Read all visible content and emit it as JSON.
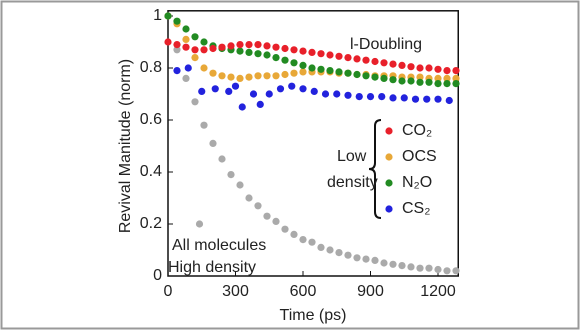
{
  "chart_data": {
    "type": "scatter",
    "xlabel": "Time (ps)",
    "ylabel": "Revival Manitude (norm)",
    "xlim": [
      0,
      1290
    ],
    "ylim": [
      0,
      1.02
    ],
    "xticks": [
      0,
      300,
      600,
      900,
      1200
    ],
    "yticks": [
      0,
      0.2,
      0.4,
      0.6,
      0.8,
      1
    ],
    "annotations": [
      "l-Doubling",
      "Low",
      "density",
      "All molecules",
      "High density"
    ],
    "series": [
      {
        "color": "#aaaaaa",
        "x": [
          0,
          40,
          80,
          120,
          160,
          200,
          240,
          280,
          320,
          360,
          400,
          440,
          480,
          520,
          560,
          600,
          640,
          680,
          720,
          760,
          800,
          840,
          880,
          920,
          960,
          1000,
          1040,
          1080,
          1120,
          1160,
          1200,
          1240,
          1280,
          140
        ],
        "values": [
          1.0,
          0.87,
          0.76,
          0.67,
          0.58,
          0.51,
          0.45,
          0.39,
          0.35,
          0.3,
          0.27,
          0.23,
          0.21,
          0.18,
          0.16,
          0.14,
          0.13,
          0.11,
          0.1,
          0.09,
          0.08,
          0.07,
          0.065,
          0.06,
          0.05,
          0.045,
          0.04,
          0.035,
          0.03,
          0.03,
          0.025,
          0.02,
          0.02,
          0.2
        ]
      },
      {
        "name": "CS₂",
        "color": "#2222dd",
        "x": [
          40,
          90,
          150,
          210,
          270,
          300,
          330,
          380,
          410,
          450,
          500,
          550,
          600,
          650,
          700,
          750,
          800,
          850,
          900,
          950,
          1000,
          1050,
          1100,
          1150,
          1200,
          1250
        ],
        "values": [
          0.79,
          0.8,
          0.71,
          0.72,
          0.71,
          0.73,
          0.65,
          0.7,
          0.66,
          0.7,
          0.72,
          0.73,
          0.72,
          0.71,
          0.7,
          0.7,
          0.695,
          0.69,
          0.69,
          0.69,
          0.685,
          0.685,
          0.68,
          0.68,
          0.68,
          0.675
        ]
      },
      {
        "name": "OCS",
        "color": "#e8a838",
        "x": [
          0,
          40,
          80,
          120,
          160,
          200,
          240,
          280,
          320,
          360,
          400,
          440,
          480,
          520,
          560,
          600,
          640,
          680,
          720,
          760,
          800,
          840,
          880,
          920,
          960,
          1000,
          1040,
          1080,
          1120,
          1160,
          1200,
          1240,
          1280
        ],
        "values": [
          1.0,
          0.97,
          0.91,
          0.84,
          0.8,
          0.78,
          0.77,
          0.765,
          0.76,
          0.765,
          0.77,
          0.77,
          0.77,
          0.775,
          0.78,
          0.785,
          0.785,
          0.785,
          0.785,
          0.78,
          0.78,
          0.775,
          0.775,
          0.77,
          0.77,
          0.77,
          0.765,
          0.765,
          0.765,
          0.76,
          0.76,
          0.76,
          0.76
        ]
      },
      {
        "name": "N₂O",
        "color": "#228b22",
        "x": [
          0,
          40,
          80,
          120,
          160,
          200,
          240,
          280,
          320,
          360,
          400,
          440,
          480,
          520,
          560,
          600,
          640,
          680,
          720,
          760,
          800,
          840,
          880,
          920,
          960,
          1000,
          1040,
          1080,
          1120,
          1160,
          1200,
          1240,
          1280
        ],
        "values": [
          1.0,
          0.98,
          0.95,
          0.92,
          0.9,
          0.885,
          0.875,
          0.87,
          0.865,
          0.86,
          0.855,
          0.85,
          0.84,
          0.83,
          0.82,
          0.81,
          0.8,
          0.795,
          0.79,
          0.785,
          0.78,
          0.775,
          0.77,
          0.765,
          0.76,
          0.755,
          0.75,
          0.75,
          0.745,
          0.745,
          0.74,
          0.74,
          0.74
        ]
      },
      {
        "name": "CO₂",
        "color": "#e8202a",
        "x": [
          0,
          40,
          80,
          120,
          160,
          200,
          240,
          280,
          320,
          360,
          400,
          440,
          480,
          520,
          560,
          600,
          640,
          680,
          720,
          760,
          800,
          840,
          880,
          920,
          960,
          1000,
          1040,
          1080,
          1120,
          1160,
          1200,
          1240,
          1280
        ],
        "values": [
          0.9,
          0.89,
          0.88,
          0.87,
          0.87,
          0.875,
          0.88,
          0.885,
          0.89,
          0.89,
          0.89,
          0.885,
          0.88,
          0.875,
          0.87,
          0.865,
          0.86,
          0.855,
          0.85,
          0.845,
          0.84,
          0.835,
          0.83,
          0.825,
          0.82,
          0.815,
          0.81,
          0.805,
          0.8,
          0.8,
          0.795,
          0.79,
          0.79
        ]
      }
    ],
    "legend_order": [
      4,
      2,
      3,
      1
    ]
  }
}
